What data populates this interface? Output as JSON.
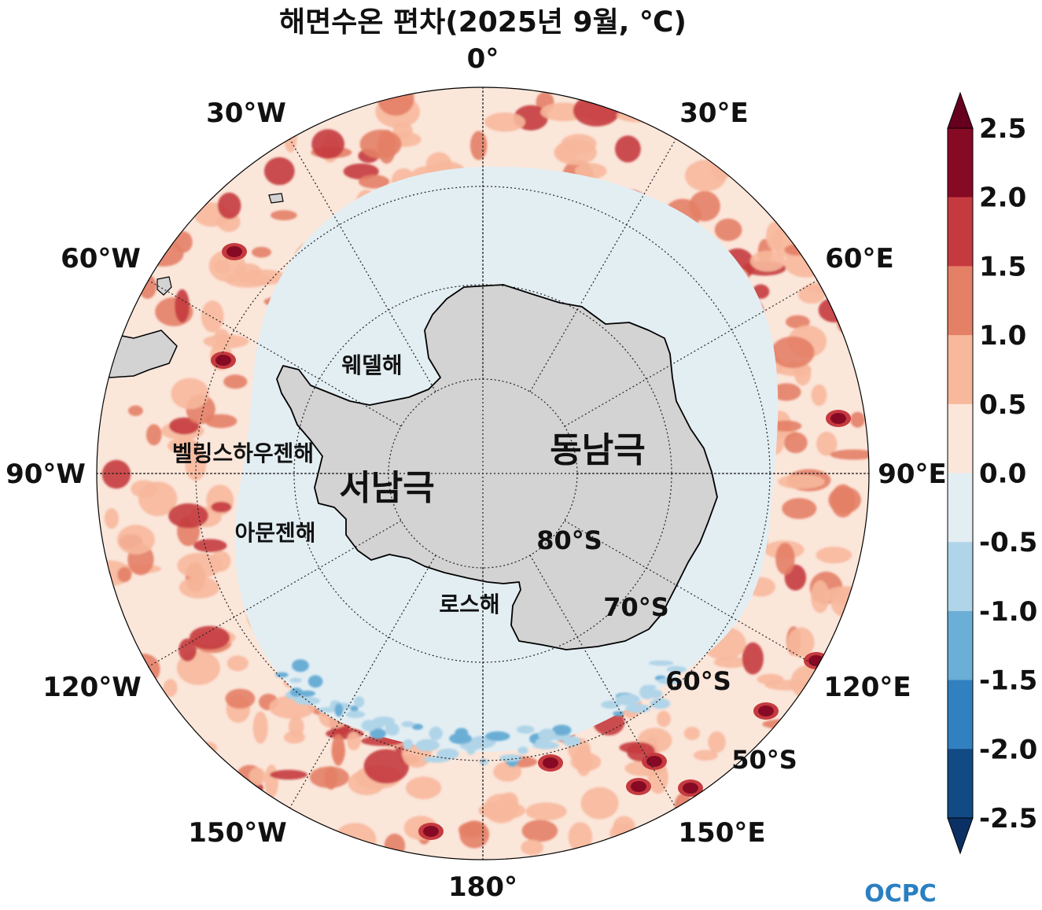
{
  "title": "해면수온 편차(2025년 9월, ℃)",
  "longitude_labels": [
    "0°",
    "30°E",
    "60°E",
    "90°E",
    "120°E",
    "150°E",
    "180°",
    "150°W",
    "120°W",
    "90°W",
    "60°W",
    "30°W"
  ],
  "latitude_labels": [
    "80°S",
    "70°S",
    "60°S",
    "50°S"
  ],
  "regions": {
    "east_antarctica": "동남극",
    "west_antarctica": "서남극",
    "weddell_sea": "웨델해",
    "bellingshausen_sea": "벨링스하우젠해",
    "amundsen_sea": "아문젠해",
    "ross_sea": "로스해"
  },
  "colorbar": {
    "labels": [
      "2.5",
      "2.0",
      "1.5",
      "1.0",
      "0.5",
      "0.0",
      "-0.5",
      "-1.0",
      "-1.5",
      "-2.0",
      "-2.5"
    ],
    "bins": [
      {
        "range": "2.0–2.5",
        "color": "#870a24"
      },
      {
        "range": "1.5–2.0",
        "color": "#c53a3f"
      },
      {
        "range": "1.0–1.5",
        "color": "#e48066"
      },
      {
        "range": "0.5–1.0",
        "color": "#f7b89c"
      },
      {
        "range": "0.0–0.5",
        "color": "#fbe6da"
      },
      {
        "range": "-0.5–0.0",
        "color": "#e3eef3"
      },
      {
        "range": "-1.0–-0.5",
        "color": "#b0d4e8"
      },
      {
        "range": "-1.5–-1.0",
        "color": "#6baed6"
      },
      {
        "range": "-2.0–-1.5",
        "color": "#3180c0"
      },
      {
        "range": "-2.5–-2.0",
        "color": "#124a85"
      }
    ],
    "extend_max_color": "#67001f",
    "extend_min_color": "#0b3064"
  },
  "colors": {
    "land": "#d3d3d3",
    "ocean_near_zero_negative": "#e3eef3",
    "ocean_near_zero_positive": "#fbe6da"
  },
  "logo": "OCPC"
}
